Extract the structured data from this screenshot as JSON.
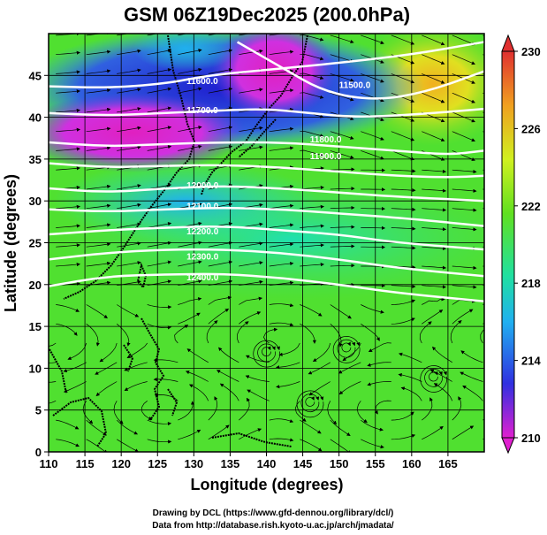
{
  "title": "GSM 06Z19Dec2025 (200.0hPa)",
  "x_axis": {
    "label": "Longitude (degrees)",
    "range": [
      110,
      170
    ],
    "ticks": [
      "110",
      "115",
      "120",
      "125",
      "130",
      "135",
      "140",
      "145",
      "150",
      "155",
      "160",
      "165"
    ]
  },
  "y_axis": {
    "label": "Latitude  (degrees)",
    "range": [
      0,
      50
    ],
    "ticks": [
      "0",
      "5",
      "10",
      "15",
      "20",
      "25",
      "30",
      "35",
      "40",
      "45"
    ]
  },
  "colorbar": {
    "range": [
      210,
      230
    ],
    "labels": [
      "210",
      "214",
      "218",
      "222",
      "226",
      "230"
    ],
    "colors": [
      "#e020d0",
      "#3030e0",
      "#20b0f0",
      "#20e0a0",
      "#60e020",
      "#e0f020",
      "#f0a020",
      "#e03030"
    ]
  },
  "contours": [
    {
      "label": "11600.0",
      "lon": 129,
      "lat": 44
    },
    {
      "label": "11700.0",
      "lon": 129,
      "lat": 40.5
    },
    {
      "label": "11500.0",
      "lon": 150,
      "lat": 43.5
    },
    {
      "label": "11800.0",
      "lon": 146,
      "lat": 37
    },
    {
      "label": "11900.0",
      "lon": 146,
      "lat": 35
    },
    {
      "label": "12000.0",
      "lon": 129,
      "lat": 31.5
    },
    {
      "label": "12100.0",
      "lon": 129,
      "lat": 29
    },
    {
      "label": "12200.0",
      "lon": 129,
      "lat": 26
    },
    {
      "label": "12300.0",
      "lon": 129,
      "lat": 23
    },
    {
      "label": "12400.0",
      "lon": 129,
      "lat": 20.5
    }
  ],
  "credits": {
    "line1": "Drawing by DCL (https://www.gfd-dennou.org/library/dcl/)",
    "line2": "Data from http://database.rish.kyoto-u.ac.jp/arch/jmadata/"
  }
}
